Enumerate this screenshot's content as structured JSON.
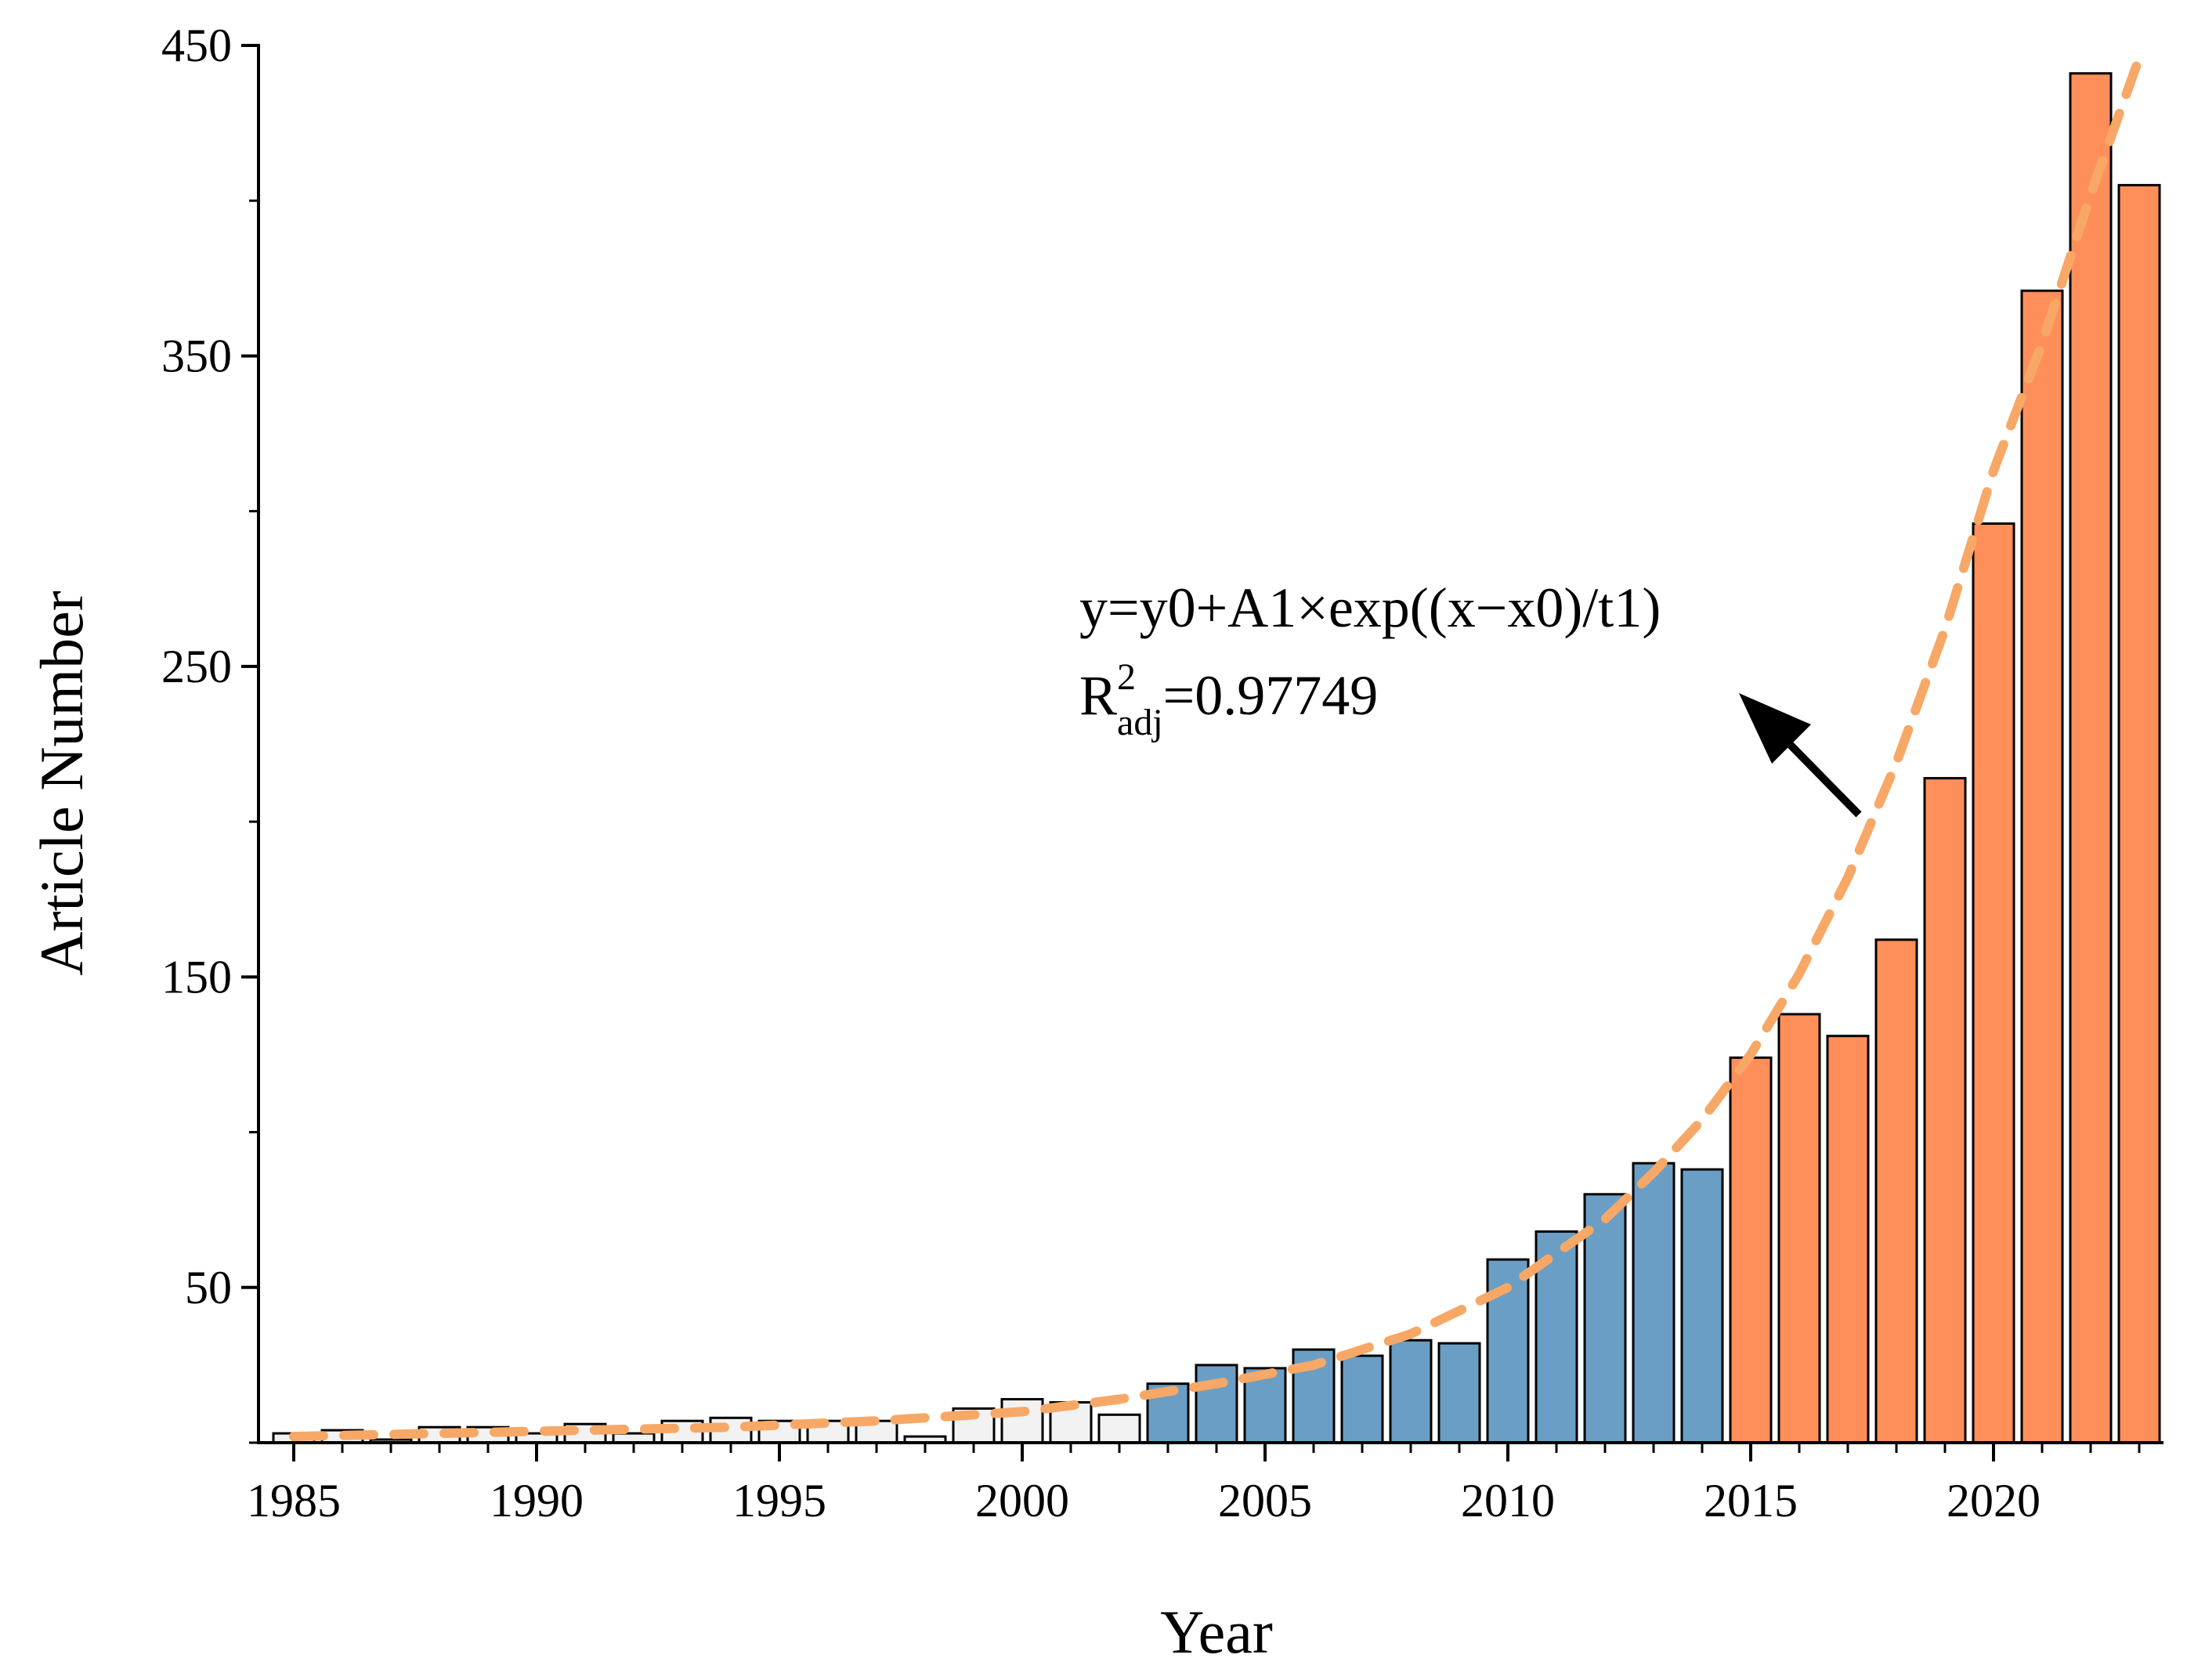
{
  "chart_data": {
    "type": "bar",
    "xlabel": "Year",
    "ylabel": "Article Number",
    "ylim": [
      0,
      450
    ],
    "y_ticks": [
      50,
      150,
      250,
      350,
      450
    ],
    "x_ticks": [
      1985,
      1990,
      1995,
      2000,
      2005,
      2010,
      2015,
      2020
    ],
    "categories": [
      1985,
      1986,
      1987,
      1988,
      1989,
      1990,
      1991,
      1992,
      1993,
      1994,
      1995,
      1996,
      1997,
      1998,
      1999,
      2000,
      2001,
      2002,
      2003,
      2004,
      2005,
      2006,
      2007,
      2008,
      2009,
      2010,
      2011,
      2012,
      2013,
      2014,
      2015,
      2016,
      2017,
      2018,
      2019,
      2020,
      2021,
      2022,
      2023
    ],
    "values": [
      3,
      4,
      1,
      5,
      5,
      3,
      6,
      3,
      7,
      8,
      7,
      7,
      7,
      2,
      11,
      14,
      13,
      9,
      19,
      25,
      24,
      30,
      28,
      33,
      32,
      59,
      68,
      80,
      90,
      88,
      124,
      138,
      131,
      162,
      214,
      296,
      371,
      441,
      405
    ],
    "bar_colors": {
      "light": "#f2f2f2",
      "blue": "#6a9ec4",
      "orange": "#ff8f5a"
    },
    "bar_color_groups": [
      {
        "from": 1985,
        "to": 2002,
        "color": "light"
      },
      {
        "from": 2003,
        "to": 2014,
        "color": "blue"
      },
      {
        "from": 2015,
        "to": 2023,
        "color": "orange"
      }
    ],
    "fit_line": {
      "style": "dashed",
      "color": "#f7a866",
      "x": [
        1985,
        1988,
        1991,
        1994,
        1997,
        2000,
        2002,
        2004,
        2006,
        2008,
        2010,
        2012,
        2013,
        2014,
        2015,
        2016,
        2017,
        2018,
        2019,
        2020,
        2021,
        2022,
        2023
      ],
      "y": [
        2,
        3,
        4,
        5,
        7,
        10,
        14,
        19,
        25,
        35,
        50,
        72,
        87,
        104,
        125,
        151,
        182,
        219,
        262,
        313,
        354,
        402,
        446
      ]
    },
    "annotation": {
      "equation": "y=y0+A1×exp((x−x0)/t1)",
      "r2_base": "R",
      "r2_sup": "2",
      "r2_sub": "adj",
      "r2_value": "=0.97749"
    }
  }
}
